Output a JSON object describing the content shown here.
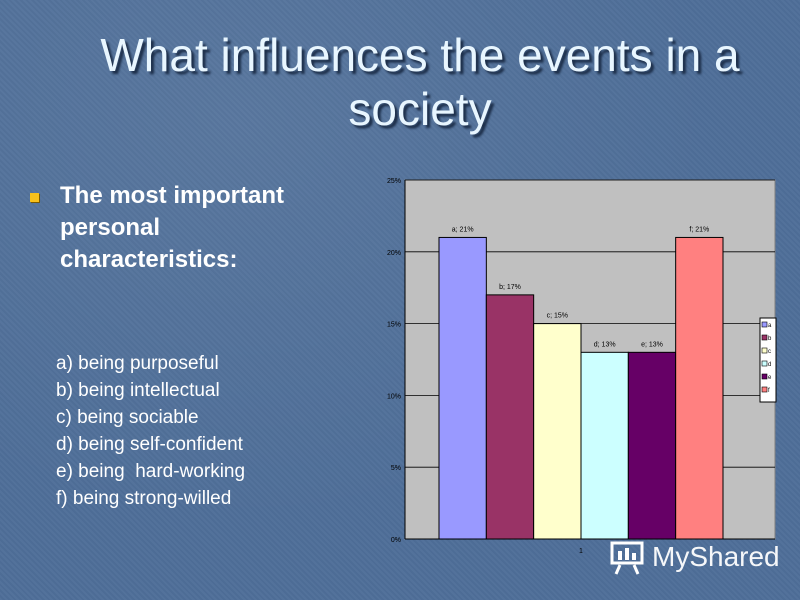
{
  "title": "What influences the events in a society",
  "bullet": "The most important personal characteristics:",
  "options": [
    "a) being purposeful",
    "b) being intellectual",
    "c) being sociable",
    "d) being self-confident",
    "e) being  hard-working",
    "f) being strong-willed"
  ],
  "watermark": "MyShared",
  "chart_data": {
    "type": "bar",
    "categories": [
      "1"
    ],
    "ylim": [
      0,
      25
    ],
    "yticks": [
      "0%",
      "5%",
      "10%",
      "15%",
      "20%",
      "25%"
    ],
    "grid": true,
    "legend": "right",
    "series": [
      {
        "name": "a",
        "value": 21,
        "label": "a; 21%",
        "color": "#9999ff"
      },
      {
        "name": "b",
        "value": 17,
        "label": "b; 17%",
        "color": "#993366"
      },
      {
        "name": "c",
        "value": 15,
        "label": "c; 15%",
        "color": "#ffffcc"
      },
      {
        "name": "d",
        "value": 13,
        "label": "d; 13%",
        "color": "#ccffff"
      },
      {
        "name": "e",
        "value": 13,
        "label": "e; 13%",
        "color": "#660066"
      },
      {
        "name": "f",
        "value": 21,
        "label": "f; 21%",
        "color": "#ff8080"
      }
    ]
  }
}
